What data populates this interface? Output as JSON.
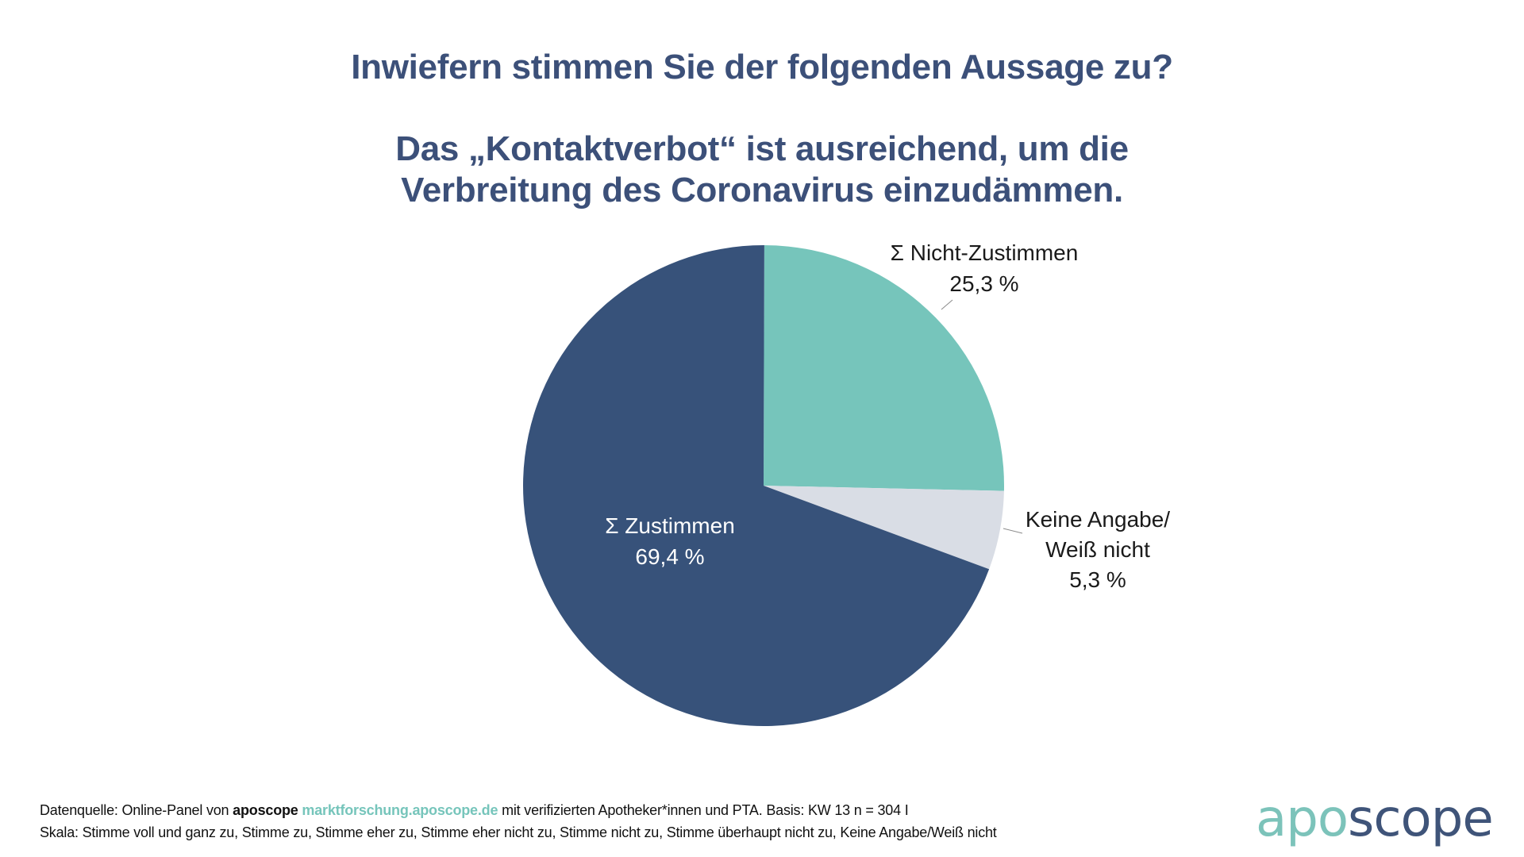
{
  "title": {
    "line1": "Inwiefern stimmen Sie der folgenden Aussage zu?",
    "line2": "Das „Kontaktverbot“ ist ausreichend, um die",
    "line3": "Verbreitung des Coronavirus einzudämmen."
  },
  "chart_data": {
    "type": "pie",
    "title": "Inwiefern stimmen Sie der folgenden Aussage zu? Das „Kontaktverbot“ ist ausreichend, um die Verbreitung des Coronavirus einzudämmen.",
    "start": "12 o'clock, clockwise",
    "slices": [
      {
        "name": "Σ Nicht-Zustimmen",
        "value": 25.3,
        "label": "25,3 %",
        "color": "#76c5bb",
        "label_lines": [
          "Σ Nicht-Zustimmen",
          "25,3 %"
        ],
        "label_position": "outside"
      },
      {
        "name": "Keine Angabe/Weiß nicht",
        "value": 5.3,
        "label": "5,3 %",
        "color": "#d9dde5",
        "label_lines": [
          "Keine Angabe/",
          "Weiß nicht",
          "5,3 %"
        ],
        "label_position": "outside"
      },
      {
        "name": "Σ Zustimmen",
        "value": 69.4,
        "label": "69,4 %",
        "color": "#37527a",
        "label_lines": [
          "Σ Zustimmen",
          "69,4 %"
        ],
        "label_position": "inside"
      }
    ]
  },
  "footer": {
    "source_prefix": "Datenquelle: Online-Panel von ",
    "source_brand": "aposcope",
    "source_link": "marktforschung.aposcope.de",
    "source_suffix": " mit verifizierten Apotheker*innen und PTA. Basis: KW 13 n = 304 I",
    "scale": "Skala: Stimme voll und ganz zu, Stimme zu, Stimme eher zu, Stimme eher nicht zu, Stimme nicht zu, Stimme überhaupt nicht zu, Keine Angabe/Weiß nicht"
  },
  "logo": {
    "part1": "apo",
    "part2": "scope"
  },
  "colors": {
    "title": "#3c5079",
    "accent_teal": "#76c5bb",
    "accent_navy": "#37527a",
    "neutral": "#d9dde5"
  }
}
